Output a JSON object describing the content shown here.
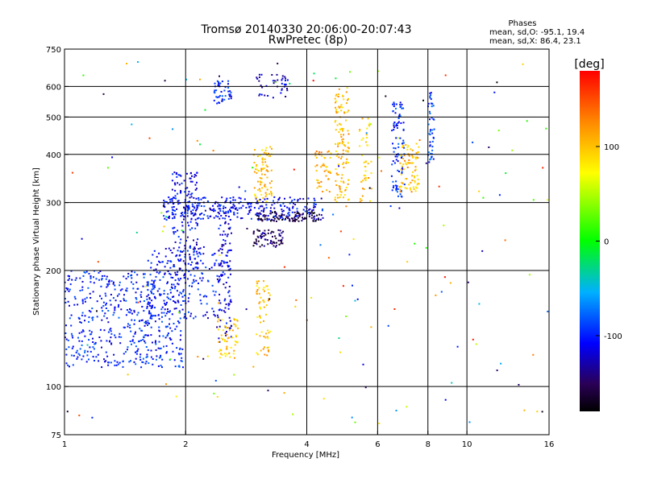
{
  "chart_data": {
    "type": "scatter",
    "title": "Tromsø 20140330 20:06:00-20:07:43",
    "subtitle": "RwPretec (8p)",
    "xlabel": "Frequency [MHz]",
    "ylabel": "Stationary phase Virtual Height [km]",
    "x_scale": "log",
    "y_scale": "log",
    "xlim": [
      1,
      16
    ],
    "ylim": [
      75,
      750
    ],
    "x_ticks": [
      1,
      2,
      4,
      6,
      8,
      10,
      16
    ],
    "y_ticks": [
      75,
      100,
      200,
      300,
      400,
      500,
      600,
      750
    ],
    "x_gridlines": [
      2,
      4,
      6,
      8,
      10
    ],
    "y_gridlines": [
      100,
      200,
      300,
      400,
      500,
      600
    ],
    "grid": true,
    "legend": {
      "title": "Phases",
      "lines": [
        "mean, sd,O: -95.1, 19.4",
        "mean, sd,X: 86.4, 23.1"
      ]
    },
    "colorbar": {
      "label": "[deg]",
      "range": [
        -180,
        180
      ],
      "ticks": [
        100,
        0,
        -100
      ]
    },
    "traces": [
      {
        "f_min": 1.0,
        "f_max": 2.0,
        "h_min": 112,
        "h_max": 200,
        "phase": -100,
        "n": 520
      },
      {
        "f_min": 1.6,
        "f_max": 2.5,
        "h_min": 150,
        "h_max": 230,
        "phase": -105,
        "n": 200
      },
      {
        "f_min": 1.85,
        "f_max": 2.15,
        "h_min": 200,
        "h_max": 360,
        "phase": -110,
        "n": 160
      },
      {
        "f_min": 1.75,
        "f_max": 4.4,
        "h_min": 270,
        "h_max": 310,
        "phase": -108,
        "n": 300
      },
      {
        "f_min": 2.4,
        "f_max": 2.6,
        "h_min": 130,
        "h_max": 290,
        "phase": -115,
        "n": 110
      },
      {
        "f_min": 2.35,
        "f_max": 2.6,
        "h_min": 540,
        "h_max": 620,
        "phase": -100,
        "n": 45
      },
      {
        "f_min": 2.95,
        "f_max": 3.5,
        "h_min": 230,
        "h_max": 255,
        "phase": -150,
        "n": 70
      },
      {
        "f_min": 3.0,
        "f_max": 4.3,
        "h_min": 268,
        "h_max": 285,
        "phase": -160,
        "n": 90
      },
      {
        "f_min": 3.0,
        "f_max": 3.6,
        "h_min": 560,
        "h_max": 650,
        "phase": -120,
        "n": 40
      },
      {
        "f_min": 2.4,
        "f_max": 2.7,
        "h_min": 118,
        "h_max": 150,
        "phase": 95,
        "n": 55
      },
      {
        "f_min": 3.0,
        "f_max": 3.25,
        "h_min": 120,
        "h_max": 190,
        "phase": 100,
        "n": 60
      },
      {
        "f_min": 2.95,
        "f_max": 3.3,
        "h_min": 300,
        "h_max": 420,
        "phase": 100,
        "n": 80
      },
      {
        "f_min": 4.7,
        "f_max": 5.1,
        "h_min": 300,
        "h_max": 600,
        "phase": 105,
        "n": 120
      },
      {
        "f_min": 4.2,
        "f_max": 4.6,
        "h_min": 320,
        "h_max": 410,
        "phase": 110,
        "n": 45
      },
      {
        "f_min": 5.4,
        "f_max": 5.8,
        "h_min": 300,
        "h_max": 500,
        "phase": 100,
        "n": 45
      },
      {
        "f_min": 6.5,
        "f_max": 7.0,
        "h_min": 310,
        "h_max": 560,
        "phase": -95,
        "n": 90
      },
      {
        "f_min": 6.8,
        "f_max": 7.6,
        "h_min": 320,
        "h_max": 430,
        "phase": 105,
        "n": 80
      },
      {
        "f_min": 8.0,
        "f_max": 8.3,
        "h_min": 380,
        "h_max": 580,
        "phase": -90,
        "n": 45
      },
      {
        "f_min": 1.0,
        "f_max": 16.0,
        "h_min": 80,
        "h_max": 700,
        "phase": 0,
        "n": 160,
        "random_phase": true
      }
    ]
  }
}
